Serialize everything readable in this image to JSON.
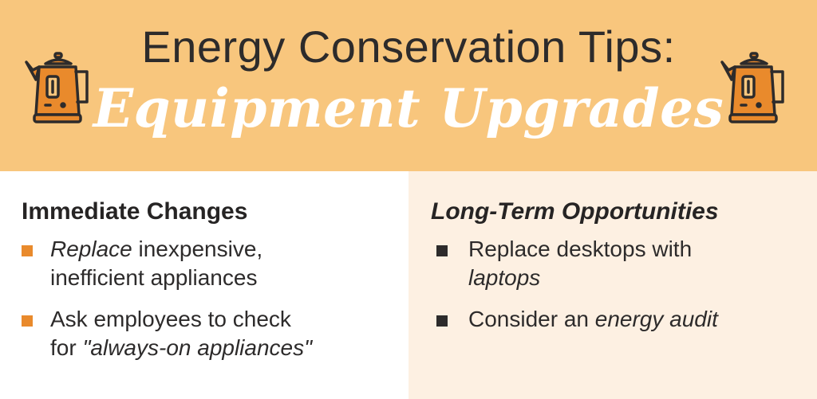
{
  "header": {
    "title": "Energy Conservation Tips:",
    "subtitle": "Equipment Upgrades",
    "icon": "kettle-icon",
    "background_color": "#f8c67d"
  },
  "immediate": {
    "heading": "Immediate Changes",
    "bullet_color": "#e98a2c",
    "items": [
      {
        "line1_em": "Replace",
        "line1_rest": " inexpensive,",
        "line2": "inefficient appliances"
      },
      {
        "line1": "Ask employees to check",
        "line2_pre": "for ",
        "line2_em": "\"always-on appliances\""
      }
    ]
  },
  "longterm": {
    "heading": "Long-Term Opportunities",
    "background_color": "#fdf0e2",
    "bullet_color": "#2d2b2b",
    "items": [
      {
        "line1": "Replace desktops with",
        "line2_em": "laptops"
      },
      {
        "pre": "Consider an ",
        "em": "energy audit"
      }
    ]
  }
}
